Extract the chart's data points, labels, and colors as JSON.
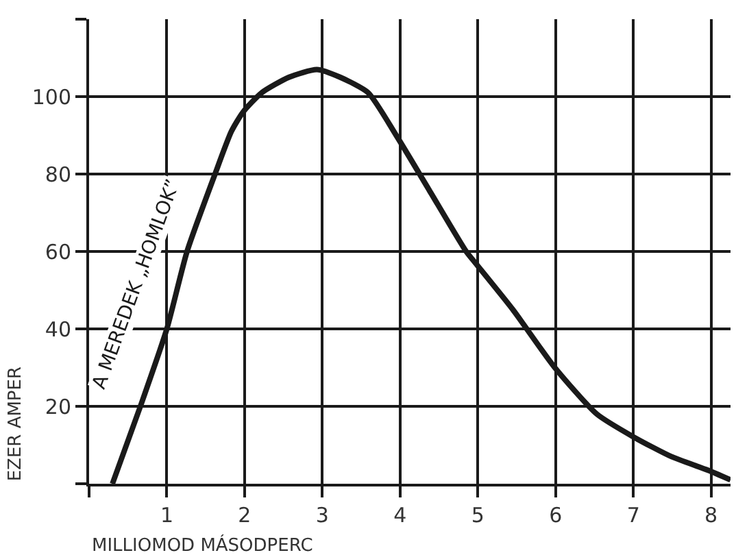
{
  "chart_data": {
    "type": "line",
    "xlabel": "MILLIOMOD MÁSODPERC",
    "ylabel": "EZER AMPER",
    "x": [
      0.3,
      0.66,
      1.0,
      1.26,
      1.62,
      1.83,
      1.98,
      2.22,
      2.57,
      2.93,
      3.23,
      3.59,
      3.95,
      4.37,
      4.85,
      4.97,
      5.45,
      5.99,
      6.53,
      7.01,
      7.49,
      7.96,
      8.25
    ],
    "series": [
      {
        "color": "#1a1a1a",
        "values": [
          0,
          20,
          40,
          60,
          80,
          91,
          96,
          101,
          105,
          107,
          105,
          101,
          90,
          76,
          60,
          57,
          45,
          30,
          18,
          12,
          7,
          3.5,
          1
        ]
      }
    ],
    "xlim": [
      0,
      8.25
    ],
    "ylim": [
      0,
      120
    ],
    "xticks": [
      {
        "value": 0,
        "label": null
      },
      1,
      2,
      3,
      4,
      5,
      6,
      7,
      8
    ],
    "yticks": [
      {
        "value": 0,
        "label": null
      },
      20,
      40,
      60,
      80,
      100,
      {
        "value": 120,
        "label": null
      }
    ],
    "grid": true,
    "marker": "none",
    "line_style": "solid",
    "annotations": [
      "A MEREDEK „HOMLOK”"
    ]
  }
}
